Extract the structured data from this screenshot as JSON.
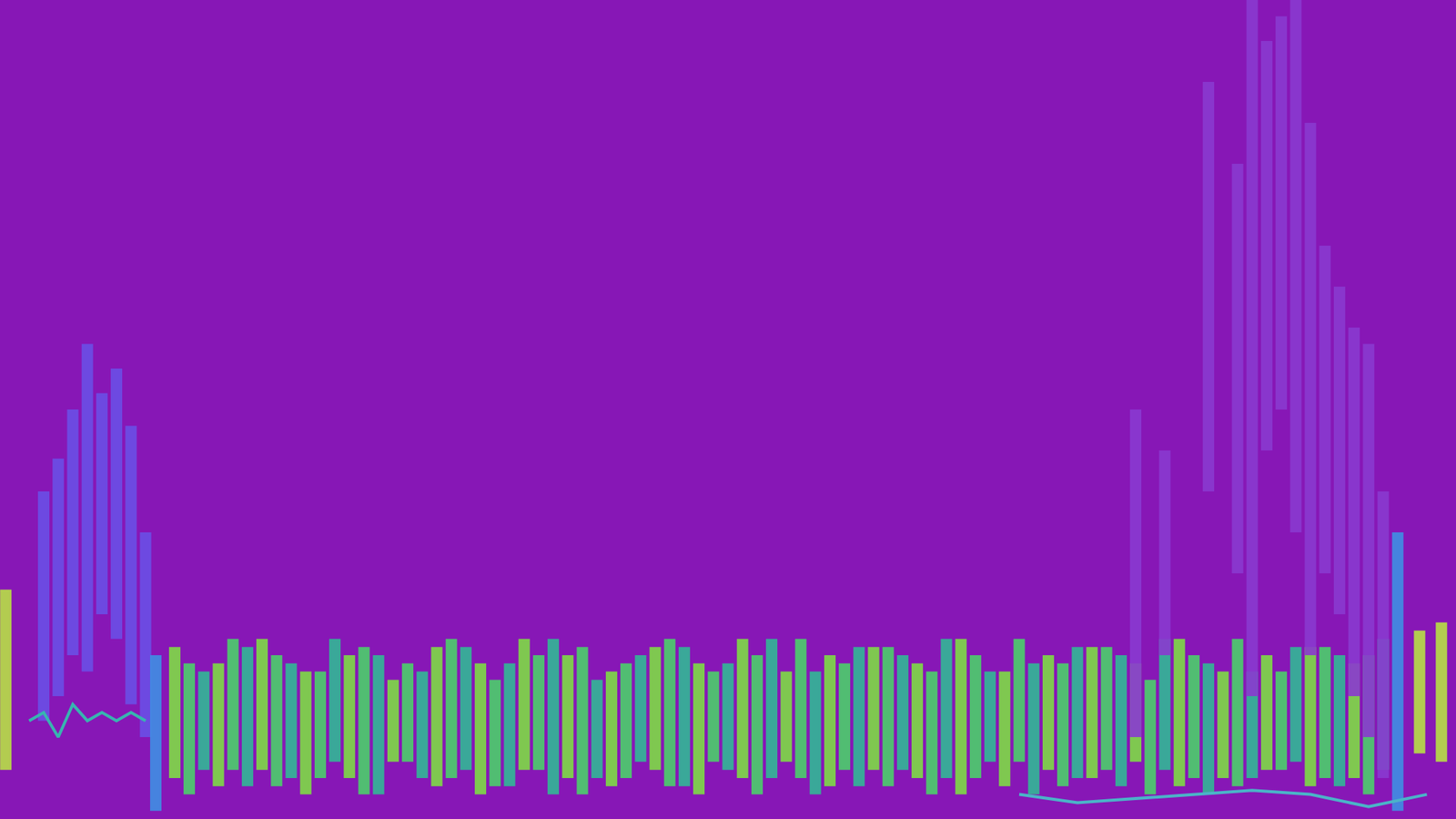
{
  "chart_data": {
    "type": "bar",
    "xlim": [
      0,
      100
    ],
    "ylim": [
      0,
      100
    ],
    "grid": false,
    "tick_labels": false,
    "series": [
      {
        "color": "#7fdc45",
        "x": [
          12,
          15,
          18,
          21,
          24,
          27,
          30,
          33,
          36,
          39,
          42,
          45,
          48,
          51,
          54,
          57,
          60,
          63,
          66,
          69,
          72,
          75,
          78,
          81,
          84,
          87,
          90,
          93
        ],
        "low": [
          5,
          4,
          6,
          3,
          5,
          7,
          4,
          3,
          6,
          5,
          4,
          6,
          3,
          5,
          7,
          4,
          6,
          5,
          3,
          4,
          6,
          5,
          7,
          4,
          5,
          6,
          4,
          5
        ],
        "high": [
          21,
          19,
          22,
          18,
          20,
          17,
          21,
          19,
          22,
          20,
          18,
          21,
          19,
          22,
          18,
          20,
          21,
          19,
          22,
          18,
          20,
          21,
          19,
          22,
          18,
          20,
          21,
          19
        ]
      },
      {
        "color": "#4ccf6b",
        "x": [
          13,
          16,
          19,
          22,
          25,
          28,
          31,
          34,
          37,
          40,
          43,
          46,
          49,
          52,
          55,
          58,
          61,
          64,
          67,
          70,
          73,
          76,
          79,
          82,
          85,
          88,
          91,
          94
        ],
        "low": [
          3,
          6,
          4,
          5,
          3,
          7,
          5,
          4,
          6,
          3,
          5,
          4,
          7,
          3,
          5,
          6,
          4,
          3,
          5,
          7,
          4,
          6,
          3,
          5,
          4,
          6,
          5,
          3
        ],
        "high": [
          19,
          22,
          20,
          18,
          21,
          19,
          22,
          17,
          20,
          21,
          19,
          22,
          18,
          20,
          22,
          19,
          21,
          18,
          20,
          22,
          19,
          21,
          17,
          20,
          22,
          18,
          21,
          20
        ]
      },
      {
        "color": "#32b896",
        "x": [
          14,
          17,
          20,
          23,
          26,
          29,
          32,
          35,
          38,
          41,
          44,
          47,
          50,
          53,
          56,
          59,
          62,
          65,
          68,
          71,
          74,
          77,
          80,
          83,
          86,
          89,
          92,
          95
        ],
        "low": [
          6,
          4,
          5,
          7,
          3,
          5,
          6,
          4,
          3,
          5,
          7,
          4,
          6,
          5,
          3,
          4,
          6,
          5,
          7,
          3,
          5,
          4,
          6,
          3,
          5,
          7,
          4,
          6
        ],
        "high": [
          18,
          21,
          19,
          22,
          20,
          18,
          21,
          19,
          22,
          17,
          20,
          21,
          19,
          22,
          18,
          21,
          20,
          22,
          18,
          19,
          21,
          20,
          22,
          19,
          18,
          21,
          20,
          22
        ]
      },
      {
        "color": "#6b4fe6",
        "x": [
          3,
          4,
          5,
          6,
          7,
          8,
          9,
          10
        ],
        "low": [
          12,
          15,
          20,
          18,
          25,
          22,
          14,
          10
        ],
        "high": [
          40,
          44,
          50,
          58,
          52,
          55,
          48,
          35
        ]
      },
      {
        "color": "#8a3ad0",
        "x": [
          78,
          80,
          83,
          85,
          86,
          87,
          88,
          89,
          90,
          91,
          92,
          93,
          94,
          95
        ],
        "low": [
          10,
          20,
          40,
          30,
          15,
          45,
          50,
          35,
          20,
          30,
          25,
          15,
          10,
          5
        ],
        "high": [
          50,
          45,
          90,
          80,
          100,
          95,
          98,
          100,
          85,
          70,
          65,
          60,
          58,
          40
        ]
      },
      {
        "color": "#3f8fe3",
        "x": [
          10.7,
          96
        ],
        "low": [
          1,
          1
        ],
        "high": [
          20,
          35
        ]
      },
      {
        "color": "#b8e045",
        "x": [
          0.4,
          97.5,
          99
        ],
        "low": [
          6,
          8,
          7
        ],
        "high": [
          28,
          23,
          24
        ]
      },
      {
        "type": "line",
        "color": "#38b4b0",
        "x": [
          2,
          3,
          4,
          5,
          6,
          7,
          8,
          9,
          10
        ],
        "values": [
          12,
          13,
          10,
          14,
          12,
          13,
          12,
          13,
          12
        ]
      },
      {
        "type": "line",
        "color": "#4bb3c8",
        "x": [
          70,
          74,
          78,
          82,
          86,
          90,
          94,
          98
        ],
        "values": [
          3,
          2,
          2.5,
          3,
          3.5,
          3,
          1.5,
          3
        ]
      }
    ]
  }
}
